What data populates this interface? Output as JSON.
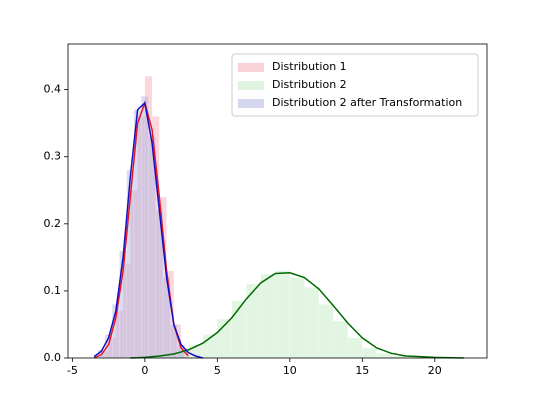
{
  "chart_data": {
    "type": "distplot",
    "xlim": [
      -5.3,
      23.6
    ],
    "ylim": [
      0,
      0.468
    ],
    "xticks": [
      -5,
      0,
      5,
      10,
      15,
      20
    ],
    "yticks": [
      {
        "value": 0,
        "label": "0.0"
      },
      0.1,
      0.2,
      0.3,
      0.4
    ],
    "legend": "upper right",
    "series": [
      {
        "name": "Distribution 1",
        "color": "#e8141e",
        "hist_color": "#f2a6b4",
        "bins": [
          -3,
          -2.5,
          -2,
          -1.5,
          -1,
          -0.5,
          0,
          0.5,
          1,
          1.5,
          2,
          2.5,
          3
        ],
        "counts": [
          0.01,
          0.03,
          0.07,
          0.14,
          0.25,
          0.36,
          0.42,
          0.36,
          0.24,
          0.13,
          0.05,
          0.015
        ],
        "kde_x": [
          -3.5,
          -3,
          -2.5,
          -2,
          -1.5,
          -1,
          -0.5,
          0,
          0.5,
          1,
          1.5,
          2,
          2.5,
          3
        ],
        "kde_y": [
          0,
          0.005,
          0.02,
          0.06,
          0.13,
          0.24,
          0.35,
          0.38,
          0.34,
          0.24,
          0.13,
          0.05,
          0.015,
          0.003
        ]
      },
      {
        "name": "Distribution 2",
        "color": "#006a00",
        "hist_color": "#bfe8bf",
        "bins": [
          0,
          1,
          2,
          3,
          4,
          5,
          6,
          7,
          8,
          9,
          10,
          11,
          12,
          13,
          14,
          15,
          16,
          17,
          18,
          19,
          20
        ],
        "counts": [
          0.002,
          0.005,
          0.01,
          0.02,
          0.035,
          0.058,
          0.085,
          0.11,
          0.125,
          0.13,
          0.12,
          0.105,
          0.08,
          0.055,
          0.03,
          0.015,
          0.007,
          0.003,
          0.001,
          0.001
        ],
        "kde_x": [
          -1,
          0,
          1,
          2,
          3,
          4,
          5,
          6,
          7,
          8,
          9,
          10,
          11,
          12,
          13,
          14,
          15,
          16,
          17,
          18,
          19,
          20,
          22
        ],
        "kde_y": [
          0,
          0.001,
          0.003,
          0.006,
          0.012,
          0.022,
          0.038,
          0.06,
          0.088,
          0.112,
          0.126,
          0.127,
          0.12,
          0.103,
          0.078,
          0.052,
          0.03,
          0.015,
          0.007,
          0.003,
          0.002,
          0.001,
          0
        ]
      },
      {
        "name": "Distribution 2 after Transformation",
        "color": "#1010c8",
        "hist_color": "#aab0e0",
        "bins": [
          -3.25,
          -2.75,
          -2.25,
          -1.75,
          -1.25,
          -0.75,
          -0.25,
          0.25,
          0.75,
          1.25,
          1.75,
          2.25,
          2.75
        ],
        "counts": [
          0.012,
          0.035,
          0.08,
          0.16,
          0.28,
          0.37,
          0.39,
          0.33,
          0.22,
          0.12,
          0.05,
          0.02
        ],
        "kde_x": [
          -3.5,
          -3,
          -2.5,
          -2,
          -1.5,
          -1,
          -0.5,
          0,
          0.5,
          1,
          1.5,
          2,
          2.5,
          3,
          3.5,
          4
        ],
        "kde_y": [
          0.002,
          0.01,
          0.03,
          0.07,
          0.15,
          0.27,
          0.37,
          0.38,
          0.32,
          0.22,
          0.12,
          0.05,
          0.02,
          0.008,
          0.003,
          0
        ]
      }
    ]
  }
}
